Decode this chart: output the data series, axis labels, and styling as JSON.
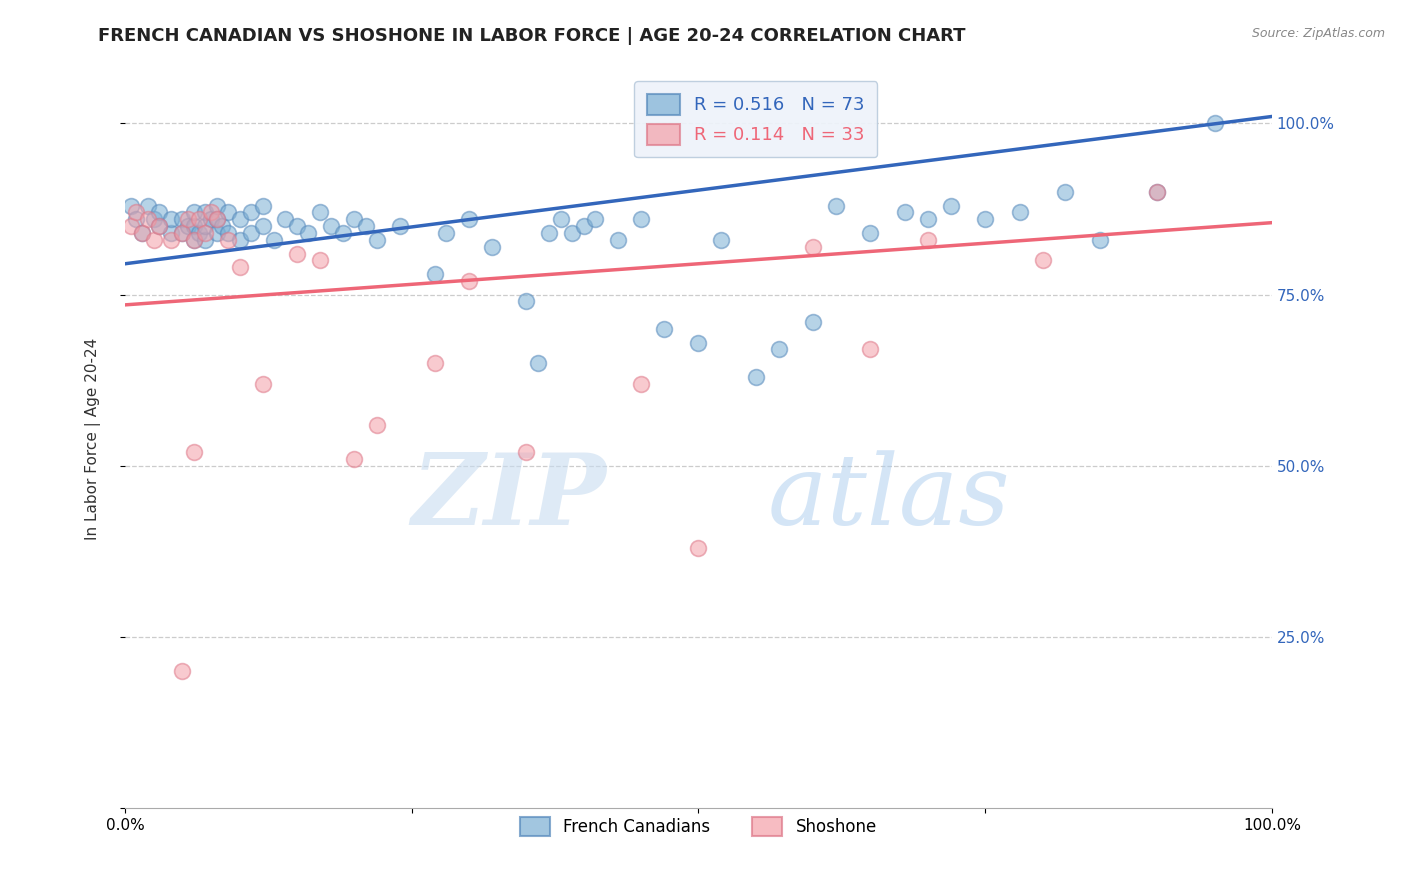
{
  "title": "FRENCH CANADIAN VS SHOSHONE IN LABOR FORCE | AGE 20-24 CORRELATION CHART",
  "source": "Source: ZipAtlas.com",
  "ylabel": "In Labor Force | Age 20-24",
  "xlim": [
    0.0,
    1.0
  ],
  "ylim": [
    0.0,
    1.08
  ],
  "blue_R": 0.516,
  "blue_N": 73,
  "pink_R": 0.114,
  "pink_N": 33,
  "blue_color": "#7BAFD4",
  "pink_color": "#F4A0A8",
  "blue_edge_color": "#5588BB",
  "pink_edge_color": "#DD7788",
  "blue_line_color": "#3366BB",
  "pink_line_color": "#EE6677",
  "legend_label_blue": "French Canadians",
  "legend_label_pink": "Shoshone",
  "blue_x": [
    0.005,
    0.01,
    0.015,
    0.02,
    0.025,
    0.03,
    0.03,
    0.04,
    0.04,
    0.05,
    0.05,
    0.055,
    0.06,
    0.06,
    0.06,
    0.065,
    0.07,
    0.07,
    0.07,
    0.075,
    0.08,
    0.08,
    0.08,
    0.085,
    0.09,
    0.09,
    0.1,
    0.1,
    0.11,
    0.11,
    0.12,
    0.12,
    0.13,
    0.14,
    0.15,
    0.16,
    0.17,
    0.18,
    0.19,
    0.2,
    0.21,
    0.22,
    0.24,
    0.27,
    0.28,
    0.3,
    0.32,
    0.35,
    0.36,
    0.37,
    0.38,
    0.39,
    0.4,
    0.41,
    0.43,
    0.45,
    0.47,
    0.5,
    0.52,
    0.55,
    0.57,
    0.6,
    0.62,
    0.65,
    0.68,
    0.7,
    0.72,
    0.75,
    0.78,
    0.82,
    0.85,
    0.9,
    0.95
  ],
  "blue_y": [
    0.88,
    0.86,
    0.84,
    0.88,
    0.86,
    0.85,
    0.87,
    0.84,
    0.86,
    0.84,
    0.86,
    0.85,
    0.83,
    0.85,
    0.87,
    0.84,
    0.83,
    0.85,
    0.87,
    0.86,
    0.84,
    0.86,
    0.88,
    0.85,
    0.84,
    0.87,
    0.83,
    0.86,
    0.84,
    0.87,
    0.85,
    0.88,
    0.83,
    0.86,
    0.85,
    0.84,
    0.87,
    0.85,
    0.84,
    0.86,
    0.85,
    0.83,
    0.85,
    0.78,
    0.84,
    0.86,
    0.82,
    0.74,
    0.65,
    0.84,
    0.86,
    0.84,
    0.85,
    0.86,
    0.83,
    0.86,
    0.7,
    0.68,
    0.83,
    0.63,
    0.67,
    0.71,
    0.88,
    0.84,
    0.87,
    0.86,
    0.88,
    0.86,
    0.87,
    0.9,
    0.83,
    0.9,
    1.0
  ],
  "pink_x": [
    0.005,
    0.01,
    0.015,
    0.02,
    0.025,
    0.03,
    0.04,
    0.05,
    0.055,
    0.06,
    0.065,
    0.07,
    0.075,
    0.08,
    0.09,
    0.1,
    0.12,
    0.15,
    0.17,
    0.2,
    0.22,
    0.27,
    0.3,
    0.35,
    0.45,
    0.5,
    0.6,
    0.65,
    0.7,
    0.8,
    0.9,
    0.05,
    0.06
  ],
  "pink_y": [
    0.85,
    0.87,
    0.84,
    0.86,
    0.83,
    0.85,
    0.83,
    0.84,
    0.86,
    0.83,
    0.86,
    0.84,
    0.87,
    0.86,
    0.83,
    0.79,
    0.62,
    0.81,
    0.8,
    0.51,
    0.56,
    0.65,
    0.77,
    0.52,
    0.62,
    0.38,
    0.82,
    0.67,
    0.83,
    0.8,
    0.9,
    0.2,
    0.52
  ],
  "blue_line": {
    "x0": 0.0,
    "y0": 0.795,
    "x1": 1.0,
    "y1": 1.01
  },
  "pink_line": {
    "x0": 0.0,
    "y0": 0.735,
    "x1": 1.0,
    "y1": 0.855
  },
  "watermark_zip": "ZIP",
  "watermark_atlas": "atlas",
  "background_color": "#FFFFFF",
  "grid_color": "#CCCCCC",
  "title_fontsize": 13,
  "axis_fontsize": 11,
  "right_axis_color": "#3366BB"
}
